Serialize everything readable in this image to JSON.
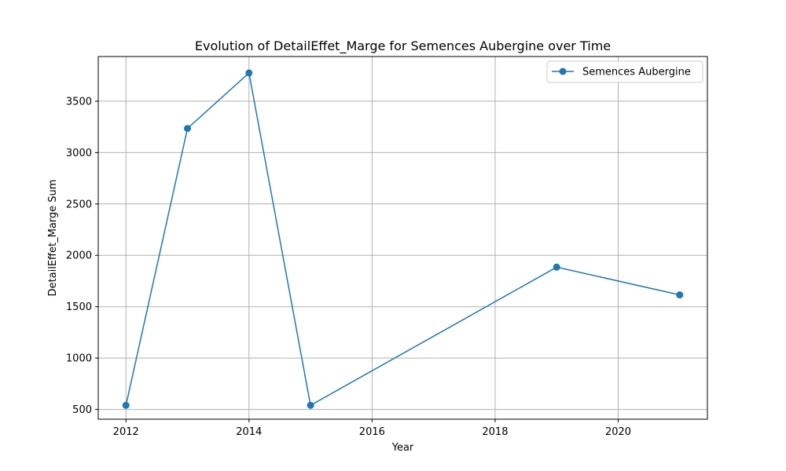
{
  "chart_data": {
    "type": "line",
    "title": "Evolution of DetailEffet_Marge for Semences Aubergine over Time",
    "xlabel": "Year",
    "ylabel": "DetailEffet_Marge Sum",
    "xlim": [
      2011.55,
      2021.45
    ],
    "ylim": [
      405,
      3935
    ],
    "xticks": [
      2012,
      2014,
      2016,
      2018,
      2020
    ],
    "yticks": [
      500,
      1000,
      1500,
      2000,
      2500,
      3000,
      3500
    ],
    "grid": true,
    "legend_position": "top-right",
    "series": [
      {
        "name": "Semences Aubergine",
        "color": "#1f77b4",
        "marker": "circle",
        "x": [
          2012,
          2013,
          2014,
          2015,
          2019,
          2021
        ],
        "y": [
          540,
          3235,
          3775,
          540,
          1885,
          1615
        ]
      }
    ]
  }
}
